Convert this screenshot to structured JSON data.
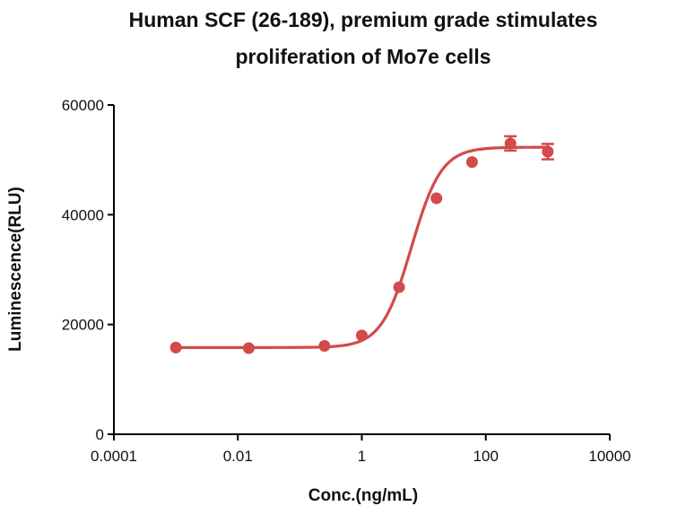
{
  "chart_data": {
    "type": "scatter",
    "title_lines": [
      "Human SCF (26-189), premium grade stimulates",
      "proliferation of Mo7e cells"
    ],
    "xlabel": "Conc.(ng/mL)",
    "ylabel": "Luminescence(RLU)",
    "x_scale": "log10",
    "xlim": [
      0.0001,
      10000
    ],
    "ylim": [
      0,
      60000
    ],
    "x_ticks": [
      0.0001,
      0.01,
      1,
      100,
      10000
    ],
    "x_tick_labels": [
      "0.0001",
      "0.01",
      "1",
      "100",
      "10000"
    ],
    "y_ticks": [
      0,
      20000,
      40000,
      60000
    ],
    "y_tick_labels": [
      "0",
      "20000",
      "40000",
      "60000"
    ],
    "grid": false,
    "color": "#d24a4a",
    "series": [
      {
        "name": "Human SCF (26-189)",
        "points": [
          {
            "x": 0.001,
            "y": 15800,
            "err": 0
          },
          {
            "x": 0.015,
            "y": 15700,
            "err": 0
          },
          {
            "x": 0.25,
            "y": 16100,
            "err": 0
          },
          {
            "x": 1,
            "y": 18000,
            "err": 0
          },
          {
            "x": 4,
            "y": 26800,
            "err": 0
          },
          {
            "x": 16,
            "y": 43000,
            "err": 0
          },
          {
            "x": 60,
            "y": 49600,
            "err": 0
          },
          {
            "x": 250,
            "y": 53000,
            "err": 1300
          },
          {
            "x": 1000,
            "y": 51500,
            "err": 1400
          }
        ],
        "fit": {
          "model": "4PL",
          "bottom": 15800,
          "top": 52300,
          "log_ec50": 0.8,
          "hill": 1.8,
          "x_range": [
            0.001,
            1000
          ]
        }
      }
    ]
  }
}
